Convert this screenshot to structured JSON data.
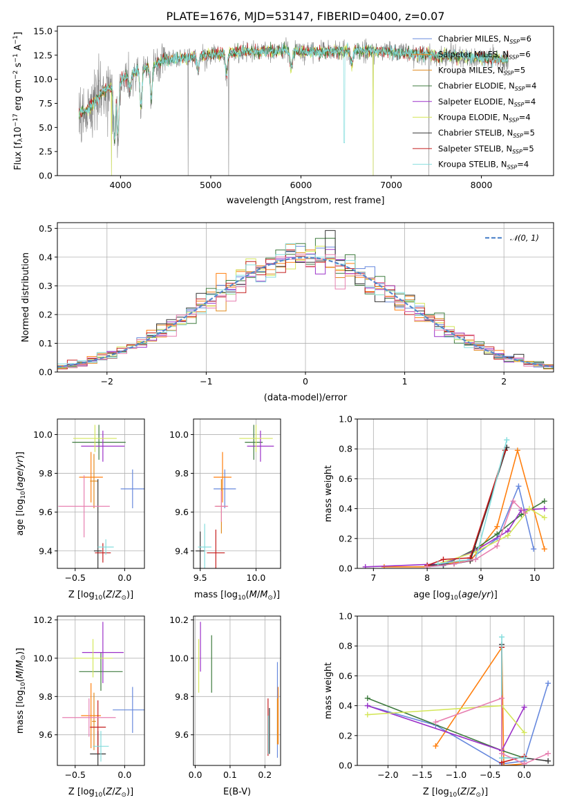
{
  "figure_title": "PLATE=1676, MJD=53147, FIBERID=0400, z=0.07",
  "colors": {
    "cmiles": "#6688dd",
    "smiles": "#ff7f0e",
    "kmiles": "#e08a1e",
    "celodie": "#3d7a3d",
    "selodie": "#9b30c8",
    "kelodie": "#d4e65a",
    "cstelib": "#333333",
    "sstelib": "#c41c1c",
    "kstelib": "#84dddd",
    "pink": "#e77fb0",
    "data": "#808080",
    "normal": "#5588cc"
  },
  "chart_data": [
    {
      "type": "line",
      "name": "spectrum",
      "xlabel": "wavelength [Angstrom, rest frame]",
      "ylabel": "Flux [f_λ 10^-17 erg cm^-2 s^-1 A^-1]",
      "xlim": [
        3300,
        8800
      ],
      "ylim": [
        0,
        15.5
      ],
      "xticks": [
        4000,
        5000,
        6000,
        7000,
        8000
      ],
      "yticks": [
        0.0,
        2.5,
        5.0,
        7.5,
        10.0,
        12.5,
        15.0
      ],
      "grid": false,
      "legend": "right",
      "legend_entries": [
        {
          "label": "Chabrier MILES, N_SSP=6",
          "color": "#6688dd"
        },
        {
          "label": "Salpeter MILES, N_SSP=6",
          "color": "#ff7f0e"
        },
        {
          "label": "Kroupa MILES, N_SSP=5",
          "color": "#e08a1e"
        },
        {
          "label": "Chabrier ELODIE, N_SSP=4",
          "color": "#3d7a3d"
        },
        {
          "label": "Salpeter ELODIE, N_SSP=4",
          "color": "#9b30c8"
        },
        {
          "label": "Kroupa ELODIE, N_SSP=4",
          "color": "#d4e65a"
        },
        {
          "label": "Chabrier STELIB, N_SSP=5",
          "color": "#333333"
        },
        {
          "label": "Salpeter STELIB, N_SSP=5",
          "color": "#c41c1c"
        },
        {
          "label": "Kroupa STELIB, N_SSP=4",
          "color": "#84dddd"
        }
      ],
      "continuum": [
        [
          3540,
          6.5
        ],
        [
          3650,
          7.0
        ],
        [
          3800,
          8.7
        ],
        [
          3950,
          9.5
        ],
        [
          4100,
          10.5
        ],
        [
          4300,
          11.3
        ],
        [
          4500,
          12.0
        ],
        [
          4800,
          12.3
        ],
        [
          5200,
          12.8
        ],
        [
          5800,
          13.0
        ],
        [
          6200,
          12.8
        ],
        [
          6600,
          13.0
        ],
        [
          7000,
          12.8
        ],
        [
          7500,
          12.5
        ],
        [
          8000,
          12.2
        ],
        [
          8300,
          12.0
        ]
      ],
      "absorption_dips": [
        [
          3934,
          3.5
        ],
        [
          3970,
          4.5
        ],
        [
          4102,
          9.0
        ],
        [
          4227,
          7.0
        ],
        [
          4340,
          8.0
        ],
        [
          4861,
          11.0
        ],
        [
          5175,
          10.5
        ],
        [
          5893,
          11.0
        ],
        [
          6563,
          11.5
        ]
      ],
      "bad_pixels": [
        [
          3900,
          0
        ],
        [
          4750,
          0
        ],
        [
          5200,
          0
        ],
        [
          6800,
          0
        ],
        [
          7420,
          0
        ]
      ]
    },
    {
      "type": "histogram",
      "name": "residuals",
      "xlabel": "(data-model)/error",
      "ylabel": "Normed distribution",
      "xlim": [
        -2.5,
        2.5
      ],
      "ylim": [
        0,
        0.52
      ],
      "xticks": [
        -2,
        -1,
        0,
        1,
        2
      ],
      "yticks": [
        0.0,
        0.1,
        0.2,
        0.3,
        0.4,
        0.5
      ],
      "grid": true,
      "legend": "top-right",
      "normal_label": "N(0,1)",
      "bins": {
        "start": -2.5,
        "width": 0.1,
        "count": 50
      }
    },
    {
      "type": "errorbar",
      "name": "age-vs-Z",
      "xlabel": "Z [log10(Z/Z☉)]",
      "ylabel": "age [log10(age/yr)]",
      "xlim": [
        -0.68,
        0.2
      ],
      "ylim": [
        9.31,
        10.08
      ],
      "xticks": [
        -0.5,
        0.0
      ],
      "yticks": [
        9.4,
        9.6,
        9.8,
        10.0
      ],
      "grid": true,
      "points": [
        {
          "series": "Chabrier MILES",
          "x": 0.08,
          "y": 9.72,
          "xerr": 0.12,
          "yerr": 0.1
        },
        {
          "series": "Salpeter MILES",
          "x": -0.34,
          "y": 9.78,
          "xerr": 0.12,
          "yerr": 0.13
        },
        {
          "series": "Kroupa MILES",
          "x": -0.31,
          "y": 9.76,
          "xerr": 0.04,
          "yerr": 0.14
        },
        {
          "series": "Chabrier ELODIE",
          "x": -0.26,
          "y": 9.96,
          "xerr": 0.27,
          "yerr": 0.09
        },
        {
          "series": "Salpeter ELODIE",
          "x": -0.22,
          "y": 9.94,
          "xerr": 0.22,
          "yerr": 0.08
        },
        {
          "series": "Kroupa ELODIE",
          "x": -0.3,
          "y": 9.98,
          "xerr": 0.22,
          "yerr": 0.07
        },
        {
          "series": "Chabrier STELIB",
          "x": -0.27,
          "y": 9.4,
          "xerr": 0.04,
          "yerr": 0.37
        },
        {
          "series": "Salpeter STELIB",
          "x": -0.22,
          "y": 9.39,
          "xerr": 0.08,
          "yerr": 0.05
        },
        {
          "series": "Kroupa STELIB",
          "x": -0.19,
          "y": 9.42,
          "xerr": 0.08,
          "yerr": 0.04
        },
        {
          "series": "pink",
          "x": -0.41,
          "y": 9.63,
          "xerr": 0.26,
          "yerr": 0.16
        }
      ]
    },
    {
      "type": "errorbar",
      "name": "age-vs-mass",
      "xlabel": "mass [log10(M/M☉)]",
      "ylabel": "",
      "xlim": [
        9.44,
        10.22
      ],
      "ylim": [
        9.31,
        10.08
      ],
      "xticks": [
        9.5,
        10.0
      ],
      "yticks": [
        9.4,
        9.6,
        9.8,
        10.0
      ],
      "grid": true,
      "points": [
        {
          "series": "Chabrier MILES",
          "x": 9.72,
          "y": 9.72,
          "xerr": 0.1,
          "yerr": 0.1
        },
        {
          "series": "Salpeter MILES",
          "x": 9.7,
          "y": 9.78,
          "xerr": 0.08,
          "yerr": 0.13
        },
        {
          "series": "Kroupa MILES",
          "x": 9.69,
          "y": 9.63,
          "xerr": 0.05,
          "yerr": 0.14
        },
        {
          "series": "Chabrier ELODIE",
          "x": 9.98,
          "y": 9.96,
          "xerr": 0.08,
          "yerr": 0.09
        },
        {
          "series": "Salpeter ELODIE",
          "x": 10.04,
          "y": 9.94,
          "xerr": 0.12,
          "yerr": 0.08
        },
        {
          "series": "Kroupa ELODIE",
          "x": 10.0,
          "y": 9.98,
          "xerr": 0.15,
          "yerr": 0.07
        },
        {
          "series": "Chabrier STELIB",
          "x": 9.5,
          "y": 9.4,
          "xerr": 0.04,
          "yerr": 0.1
        },
        {
          "series": "Salpeter STELIB",
          "x": 9.64,
          "y": 9.39,
          "xerr": 0.08,
          "yerr": 0.12
        },
        {
          "series": "Kroupa STELIB",
          "x": 9.54,
          "y": 9.42,
          "xerr": 0.06,
          "yerr": 0.12
        },
        {
          "series": "pink",
          "x": 9.69,
          "y": 9.63,
          "xerr": 0.06,
          "yerr": 0.08
        }
      ]
    },
    {
      "type": "line",
      "name": "weight-vs-age",
      "xlabel": "age [log10(age/yr)]",
      "ylabel": "mass weight",
      "xlim": [
        6.7,
        10.35
      ],
      "ylim": [
        0,
        1.0
      ],
      "xticks": [
        7,
        8,
        9,
        10
      ],
      "yticks": [
        0.0,
        0.2,
        0.4,
        0.6,
        0.8,
        1.0
      ],
      "grid": true,
      "series": [
        {
          "name": "Chabrier MILES",
          "x": [
            8.0,
            8.3,
            8.8,
            9.3,
            9.7,
            9.98
          ],
          "y": [
            0.01,
            0.02,
            0.06,
            0.2,
            0.55,
            0.13
          ]
        },
        {
          "name": "Salpeter MILES",
          "x": [
            7.2,
            8.0,
            8.5,
            8.8,
            9.3,
            9.68,
            10.18
          ],
          "y": [
            0.01,
            0.01,
            0.04,
            0.05,
            0.28,
            0.79,
            0.13
          ]
        },
        {
          "name": "Chabrier ELODIE",
          "x": [
            8.3,
            8.9,
            9.3,
            9.75,
            10.18
          ],
          "y": [
            0.02,
            0.13,
            0.23,
            0.36,
            0.45
          ]
        },
        {
          "name": "Salpeter ELODIE",
          "x": [
            6.85,
            8.3,
            8.9,
            9.5,
            9.75,
            10.18
          ],
          "y": [
            0.01,
            0.03,
            0.12,
            0.25,
            0.39,
            0.4
          ]
        },
        {
          "name": "Kroupa ELODIE",
          "x": [
            8.2,
            8.9,
            9.5,
            9.9,
            10.18
          ],
          "y": [
            0.03,
            0.11,
            0.22,
            0.4,
            0.34
          ]
        },
        {
          "name": "Chabrier STELIB",
          "x": [
            8.0,
            8.5,
            8.8,
            9.48
          ],
          "y": [
            0.02,
            0.03,
            0.05,
            0.81
          ]
        },
        {
          "name": "Salpeter STELIB",
          "x": [
            8.0,
            8.3,
            8.8,
            9.45
          ],
          "y": [
            0.02,
            0.06,
            0.07,
            0.79
          ]
        },
        {
          "name": "Kroupa STELIB",
          "x": [
            8.2,
            8.6,
            8.9,
            9.48
          ],
          "y": [
            0.03,
            0.05,
            0.06,
            0.86
          ]
        },
        {
          "name": "pink",
          "x": [
            8.0,
            8.5,
            8.9,
            9.3,
            9.6,
            9.82
          ],
          "y": [
            0.01,
            0.03,
            0.06,
            0.15,
            0.45,
            0.37
          ]
        }
      ]
    },
    {
      "type": "errorbar",
      "name": "mass-vs-Z",
      "xlabel": "Z [log10(Z/Z☉)]",
      "ylabel": "mass [log10(M/M☉)]",
      "xlim": [
        -0.68,
        0.2
      ],
      "ylim": [
        9.44,
        10.22
      ],
      "xticks": [
        -0.5,
        0.0
      ],
      "yticks": [
        9.6,
        9.8,
        10.0,
        10.2
      ],
      "grid": true,
      "points": [
        {
          "series": "Chabrier MILES",
          "x": 0.08,
          "y": 9.73,
          "xerr": 0.2,
          "yerr": 0.12
        },
        {
          "series": "Salpeter MILES",
          "x": -0.34,
          "y": 9.7,
          "xerr": 0.1,
          "yerr": 0.17
        },
        {
          "series": "Kroupa MILES",
          "x": -0.31,
          "y": 9.67,
          "xerr": 0.02,
          "yerr": 0.15
        },
        {
          "series": "Chabrier ELODIE",
          "x": -0.24,
          "y": 9.93,
          "xerr": 0.22,
          "yerr": 0.1
        },
        {
          "series": "Salpeter ELODIE",
          "x": -0.22,
          "y": 10.03,
          "xerr": 0.21,
          "yerr": 0.16
        },
        {
          "series": "Kroupa ELODIE",
          "x": -0.32,
          "y": 10.0,
          "xerr": 0.2,
          "yerr": 0.1
        },
        {
          "series": "Chabrier STELIB",
          "x": -0.27,
          "y": 9.5,
          "xerr": 0.08,
          "yerr": 0.12
        },
        {
          "series": "Salpeter STELIB",
          "x": -0.27,
          "y": 9.64,
          "xerr": 0.08,
          "yerr": 0.14
        },
        {
          "series": "Kroupa STELIB",
          "x": -0.24,
          "y": 9.54,
          "xerr": 0.08,
          "yerr": 0.08
        },
        {
          "series": "pink",
          "x": -0.36,
          "y": 9.69,
          "xerr": 0.27,
          "yerr": 0.1
        }
      ]
    },
    {
      "type": "errorbar",
      "name": "mass-vs-ebv",
      "xlabel": "E(B-V)",
      "ylabel": "",
      "xlim": [
        -0.005,
        0.245
      ],
      "ylim": [
        9.44,
        10.22
      ],
      "xticks": [
        0.0,
        0.1,
        0.2
      ],
      "yticks": [
        9.6,
        9.8,
        10.0,
        10.2
      ],
      "grid": true,
      "points": [
        {
          "series": "Chabrier MILES",
          "x": 0.236,
          "y": 9.73,
          "xerr": 0,
          "yerr": 0.25
        },
        {
          "series": "Salpeter MILES",
          "x": 0.238,
          "y": 9.7,
          "xerr": 0,
          "yerr": 0.15
        },
        {
          "series": "Kroupa MILES",
          "x": 0.236,
          "y": 9.67,
          "xerr": 0,
          "yerr": 0.12
        },
        {
          "series": "Chabrier ELODIE",
          "x": 0.047,
          "y": 9.97,
          "xerr": 0,
          "yerr": 0.15
        },
        {
          "series": "Salpeter ELODIE",
          "x": 0.015,
          "y": 10.06,
          "xerr": 0,
          "yerr": 0.13
        },
        {
          "series": "Kroupa ELODIE",
          "x": 0.01,
          "y": 9.96,
          "xerr": 0,
          "yerr": 0.14
        },
        {
          "series": "Chabrier STELIB",
          "x": 0.213,
          "y": 9.62,
          "xerr": 0,
          "yerr": 0.12
        },
        {
          "series": "Salpeter STELIB",
          "x": 0.209,
          "y": 9.64,
          "xerr": 0,
          "yerr": 0.15
        },
        {
          "series": "Kroupa STELIB",
          "x": 0.21,
          "y": 9.6,
          "xerr": 0,
          "yerr": 0.1
        }
      ]
    },
    {
      "type": "line",
      "name": "weight-vs-Z",
      "xlabel": "Z [log10(Z/Z☉)]",
      "ylabel": "mass weight",
      "xlim": [
        -2.45,
        0.43
      ],
      "ylim": [
        0,
        1.0
      ],
      "xticks": [
        -2.0,
        -1.5,
        -1.0,
        -0.5,
        0.0
      ],
      "yticks": [
        0.0,
        0.2,
        0.4,
        0.6,
        0.8,
        1.0
      ],
      "grid": true,
      "series": [
        {
          "name": "Chabrier MILES",
          "x": [
            -2.3,
            -1.3,
            -0.33,
            0.0,
            0.35
          ],
          "y": [
            0.4,
            0.27,
            0.01,
            0.03,
            0.55
          ]
        },
        {
          "name": "Salpeter MILES",
          "x": [
            -1.3,
            -0.33,
            -0.3,
            0.0
          ],
          "y": [
            0.13,
            0.79,
            0.0,
            0.01
          ]
        },
        {
          "name": "Chabrier ELODIE",
          "x": [
            -2.3,
            -0.33,
            0.0
          ],
          "y": [
            0.45,
            0.1,
            0.05
          ]
        },
        {
          "name": "Salpeter ELODIE",
          "x": [
            -2.3,
            -0.33,
            0.0
          ],
          "y": [
            0.4,
            0.1,
            0.39
          ]
        },
        {
          "name": "Kroupa ELODIE",
          "x": [
            -2.3,
            -0.33,
            0.0
          ],
          "y": [
            0.34,
            0.4,
            0.22
          ]
        },
        {
          "name": "Chabrier STELIB",
          "x": [
            -0.33,
            -0.33,
            0.0,
            0.35
          ],
          "y": [
            0.81,
            0.05,
            0.05,
            0.03
          ]
        },
        {
          "name": "Salpeter STELIB",
          "x": [
            -0.33,
            -0.33,
            0.0
          ],
          "y": [
            0.79,
            0.02,
            0.06
          ]
        },
        {
          "name": "Kroupa STELIB",
          "x": [
            -0.33,
            -0.33,
            0.0
          ],
          "y": [
            0.86,
            0.05,
            0.05
          ]
        },
        {
          "name": "pink",
          "x": [
            -1.3,
            -0.33,
            -0.33,
            0.0,
            0.35
          ],
          "y": [
            0.29,
            0.45,
            0.08,
            0.01,
            0.08
          ]
        }
      ]
    }
  ]
}
